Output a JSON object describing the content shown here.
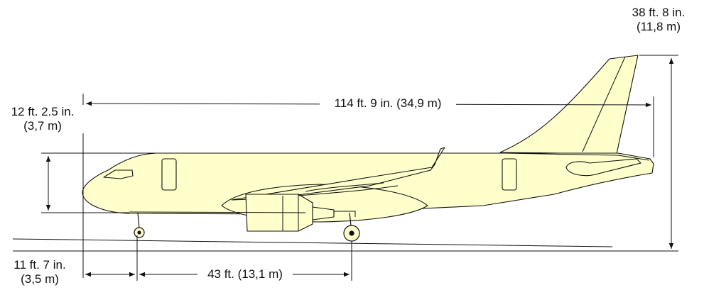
{
  "figure": {
    "fuselage_color": "#FFFFCC",
    "line_color": "#111111",
    "background": "#FFFFFF"
  },
  "dimensions": {
    "overall_height": {
      "imperial": "38 ft. 8 in.",
      "metric": "(11,8 m)"
    },
    "overall_length": {
      "text": "114 ft. 9 in. (34,9 m)"
    },
    "cabin_height": {
      "imperial": "12 ft. 2.5 in.",
      "metric": "(3,7 m)"
    },
    "nose_gear_offset": {
      "imperial": "11 ft. 7 in.",
      "metric": "(3,5 m)"
    },
    "wheelbase": {
      "text": "43 ft. (13,1 m)"
    }
  }
}
